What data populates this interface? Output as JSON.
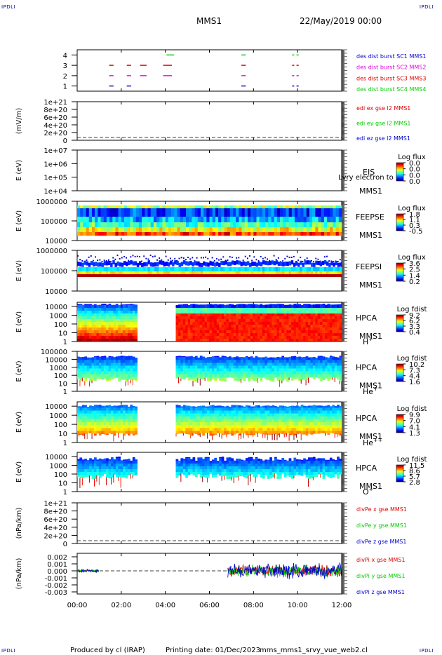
{
  "header": {
    "corner_left": "IPDLI",
    "corner_right": "IPDLI",
    "spacecraft": "MMS1",
    "date": "22/May/2019 00:00"
  },
  "footer": {
    "produced_by": "Produced by cl (IRAP)",
    "printing_date": "Printing date: 01/Dec/2023",
    "script_name": "mms_mms1_srvy_vue_web2.cl",
    "corner_left": "IPDLI",
    "corner_right": "IPDLI"
  },
  "colors": {
    "blue": "#0000cc",
    "magenta": "#dd00dd",
    "red": "#dd0000",
    "green": "#00cc00"
  },
  "chart_data": [
    {
      "type": "scatter",
      "panel": "burst",
      "yticks": [
        "4",
        "3",
        "2",
        "1"
      ],
      "ylim": [
        0.5,
        4.5
      ],
      "xlim": [
        "00:00",
        "12:00"
      ],
      "legend": [
        {
          "label": "des dist burst SC1 MMS1",
          "color": "#0000cc"
        },
        {
          "label": "des dist burst SC2 MMS2",
          "color": "#dd00dd"
        },
        {
          "label": "des dist burst SC3 MMS3",
          "color": "#dd0000"
        },
        {
          "label": "des dist burst SC4 MMS4",
          "color": "#00cc00"
        }
      ],
      "intervals": [
        {
          "level": 4,
          "color": "#00cc00",
          "segments": [
            [
              4.05,
              4.4
            ],
            [
              7.45,
              7.65
            ],
            [
              9.75,
              9.85
            ],
            [
              9.95,
              10.05
            ]
          ]
        },
        {
          "level": 3,
          "color": "#dd0000",
          "segments": [
            [
              1.45,
              1.65
            ],
            [
              2.25,
              2.45
            ],
            [
              2.85,
              3.15
            ],
            [
              3.9,
              4.3
            ],
            [
              7.45,
              7.65
            ],
            [
              9.75,
              9.85
            ],
            [
              9.95,
              10.05
            ]
          ]
        },
        {
          "level": 2,
          "color": "#dd00dd",
          "segments": [
            [
              1.45,
              1.65
            ],
            [
              2.25,
              2.45
            ],
            [
              2.85,
              3.15
            ],
            [
              3.9,
              4.3
            ],
            [
              7.45,
              7.65
            ],
            [
              9.75,
              9.85
            ],
            [
              9.95,
              10.05
            ]
          ]
        },
        {
          "level": 1,
          "color": "#0000cc",
          "segments": [
            [
              1.45,
              1.65
            ],
            [
              2.25,
              2.45
            ],
            [
              7.45,
              7.65
            ],
            [
              9.75,
              9.85
            ],
            [
              9.95,
              10.05
            ]
          ]
        }
      ]
    },
    {
      "type": "line",
      "panel": "edi",
      "ylabel": "(mV/m)",
      "yticks": [
        "1e+21",
        "8e+20",
        "6e+20",
        "4e+20",
        "2e+20",
        "0"
      ],
      "ylim": [
        0,
        1e+21
      ],
      "legend": [
        {
          "label": "edi ex gse l2 MMS1",
          "color": "#dd0000"
        },
        {
          "label": "edi ey gse l2 MMS1",
          "color": "#00cc00"
        },
        {
          "label": "edi ez gse l2 MMS1",
          "color": "#0000cc"
        }
      ],
      "zero_line": true
    },
    {
      "type": "heatmap",
      "panel": "eis",
      "ylabel": "E (eV)",
      "yticks": [
        "1e+07",
        "1e+06",
        "1e+05",
        "1e+04"
      ],
      "ylim": [
        10000,
        10000000
      ],
      "log_y": true,
      "instrument": [
        "EIS",
        "MMS1"
      ],
      "species": "Lvry electron to",
      "colorbar": {
        "title": "Log flux",
        "ticks": [
          "0.0",
          "0.0",
          "0.0",
          "0.0"
        ]
      }
    },
    {
      "type": "heatmap",
      "panel": "feepse",
      "ylabel": "E (eV)",
      "yticks": [
        "1000000",
        "100000",
        "10000"
      ],
      "ylim": [
        10000,
        1000000
      ],
      "log_y": true,
      "instrument": [
        "FEEPSE",
        "MMS1"
      ],
      "colorbar": {
        "title": "Log flux",
        "ticks": [
          "1.8",
          "1.1",
          "0.3",
          "-0.5"
        ]
      }
    },
    {
      "type": "heatmap",
      "panel": "feepsi",
      "ylabel": "E (eV)",
      "yticks": [
        "1000000",
        "100000",
        "10000"
      ],
      "ylim": [
        10000,
        1000000
      ],
      "log_y": true,
      "instrument": [
        "FEEPSI",
        "MMS1"
      ],
      "colorbar": {
        "title": "Log flux",
        "ticks": [
          "3.6",
          "2.5",
          "1.4",
          "0.2"
        ]
      }
    },
    {
      "type": "heatmap",
      "panel": "hpca_h",
      "ylabel": "E (eV)",
      "yticks": [
        "10000",
        "1000",
        "100",
        "10",
        "1"
      ],
      "ylim": [
        1,
        30000
      ],
      "log_y": true,
      "instrument": [
        "HPCA",
        "MMS1"
      ],
      "species_label": "H",
      "species_charge": "+",
      "data_gap": [
        "02:50",
        "04:25"
      ],
      "colorbar": {
        "title": "Log fdist",
        "ticks": [
          "9.2",
          "6.2",
          "3.3",
          "0.4"
        ]
      }
    },
    {
      "type": "heatmap",
      "panel": "hpca_he",
      "ylabel": "E (eV)",
      "yticks": [
        "100000",
        "10000",
        "1000",
        "100",
        "10",
        "1"
      ],
      "ylim": [
        1,
        100000
      ],
      "log_y": true,
      "instrument": [
        "HPCA",
        "MMS1"
      ],
      "species_label": "He",
      "species_charge": "+",
      "data_gap": [
        "02:50",
        "04:25"
      ],
      "colorbar": {
        "title": "Log fdist",
        "ticks": [
          "10.2",
          "7.3",
          "4.4",
          "1.6"
        ]
      }
    },
    {
      "type": "heatmap",
      "panel": "hpca_hepp",
      "ylabel": "E (eV)",
      "yticks": [
        "10000",
        "1000",
        "100",
        "10",
        "1"
      ],
      "ylim": [
        1,
        30000
      ],
      "log_y": true,
      "instrument": [
        "HPCA",
        "MMS1"
      ],
      "species_label": "He",
      "species_charge": "++",
      "data_gap": [
        "02:50",
        "04:25"
      ],
      "colorbar": {
        "title": "Log fdist",
        "ticks": [
          "9.9",
          "7.0",
          "4.1",
          "1.3"
        ]
      }
    },
    {
      "type": "heatmap",
      "panel": "hpca_o",
      "ylabel": "E (eV)",
      "yticks": [
        "10000",
        "1000",
        "100",
        "10",
        "1"
      ],
      "ylim": [
        1,
        30000
      ],
      "log_y": true,
      "instrument": [
        "HPCA",
        "MMS1"
      ],
      "species_label": "O",
      "species_charge": "+",
      "data_gap": [
        "02:50",
        "04:25"
      ],
      "colorbar": {
        "title": "Log fdist",
        "ticks": [
          "11.5",
          "8.6",
          "5.7",
          "2.8"
        ]
      }
    },
    {
      "type": "line",
      "panel": "divpe",
      "ylabel": "(nPa/km)",
      "yticks": [
        "1e+21",
        "8e+20",
        "6e+20",
        "4e+20",
        "2e+20",
        "0"
      ],
      "ylim": [
        0,
        1e+21
      ],
      "legend": [
        {
          "label": "divPe x gse MMS1",
          "color": "#dd0000"
        },
        {
          "label": "divPe y gse MMS1",
          "color": "#00cc00"
        },
        {
          "label": "divPe z gse MMS1",
          "color": "#0000cc"
        }
      ],
      "zero_line": true
    },
    {
      "type": "line",
      "panel": "divpi",
      "ylabel": "(nPa/km)",
      "yticks": [
        "0.002",
        "0.001",
        "0.000",
        "-0.001",
        "-0.002",
        "-0.003"
      ],
      "ylim": [
        -0.0033,
        0.0025
      ],
      "legend": [
        {
          "label": "divPi x gse MMS1",
          "color": "#dd0000"
        },
        {
          "label": "divPi y gse MMS1",
          "color": "#00cc00"
        },
        {
          "label": "divPi z gse MMS1",
          "color": "#0000cc"
        }
      ],
      "zero_line": true,
      "segments": [
        {
          "x": [
            "00:00",
            "01:00"
          ],
          "amplitude": 0.0002
        },
        {
          "x": [
            "06:50",
            "12:00"
          ],
          "amplitude": 0.0009
        }
      ]
    }
  ],
  "xaxis": {
    "ticks": [
      "00:00",
      "02:00",
      "04:00",
      "06:00",
      "08:00",
      "10:00",
      "12:00"
    ],
    "range_hours": [
      0,
      12
    ]
  }
}
